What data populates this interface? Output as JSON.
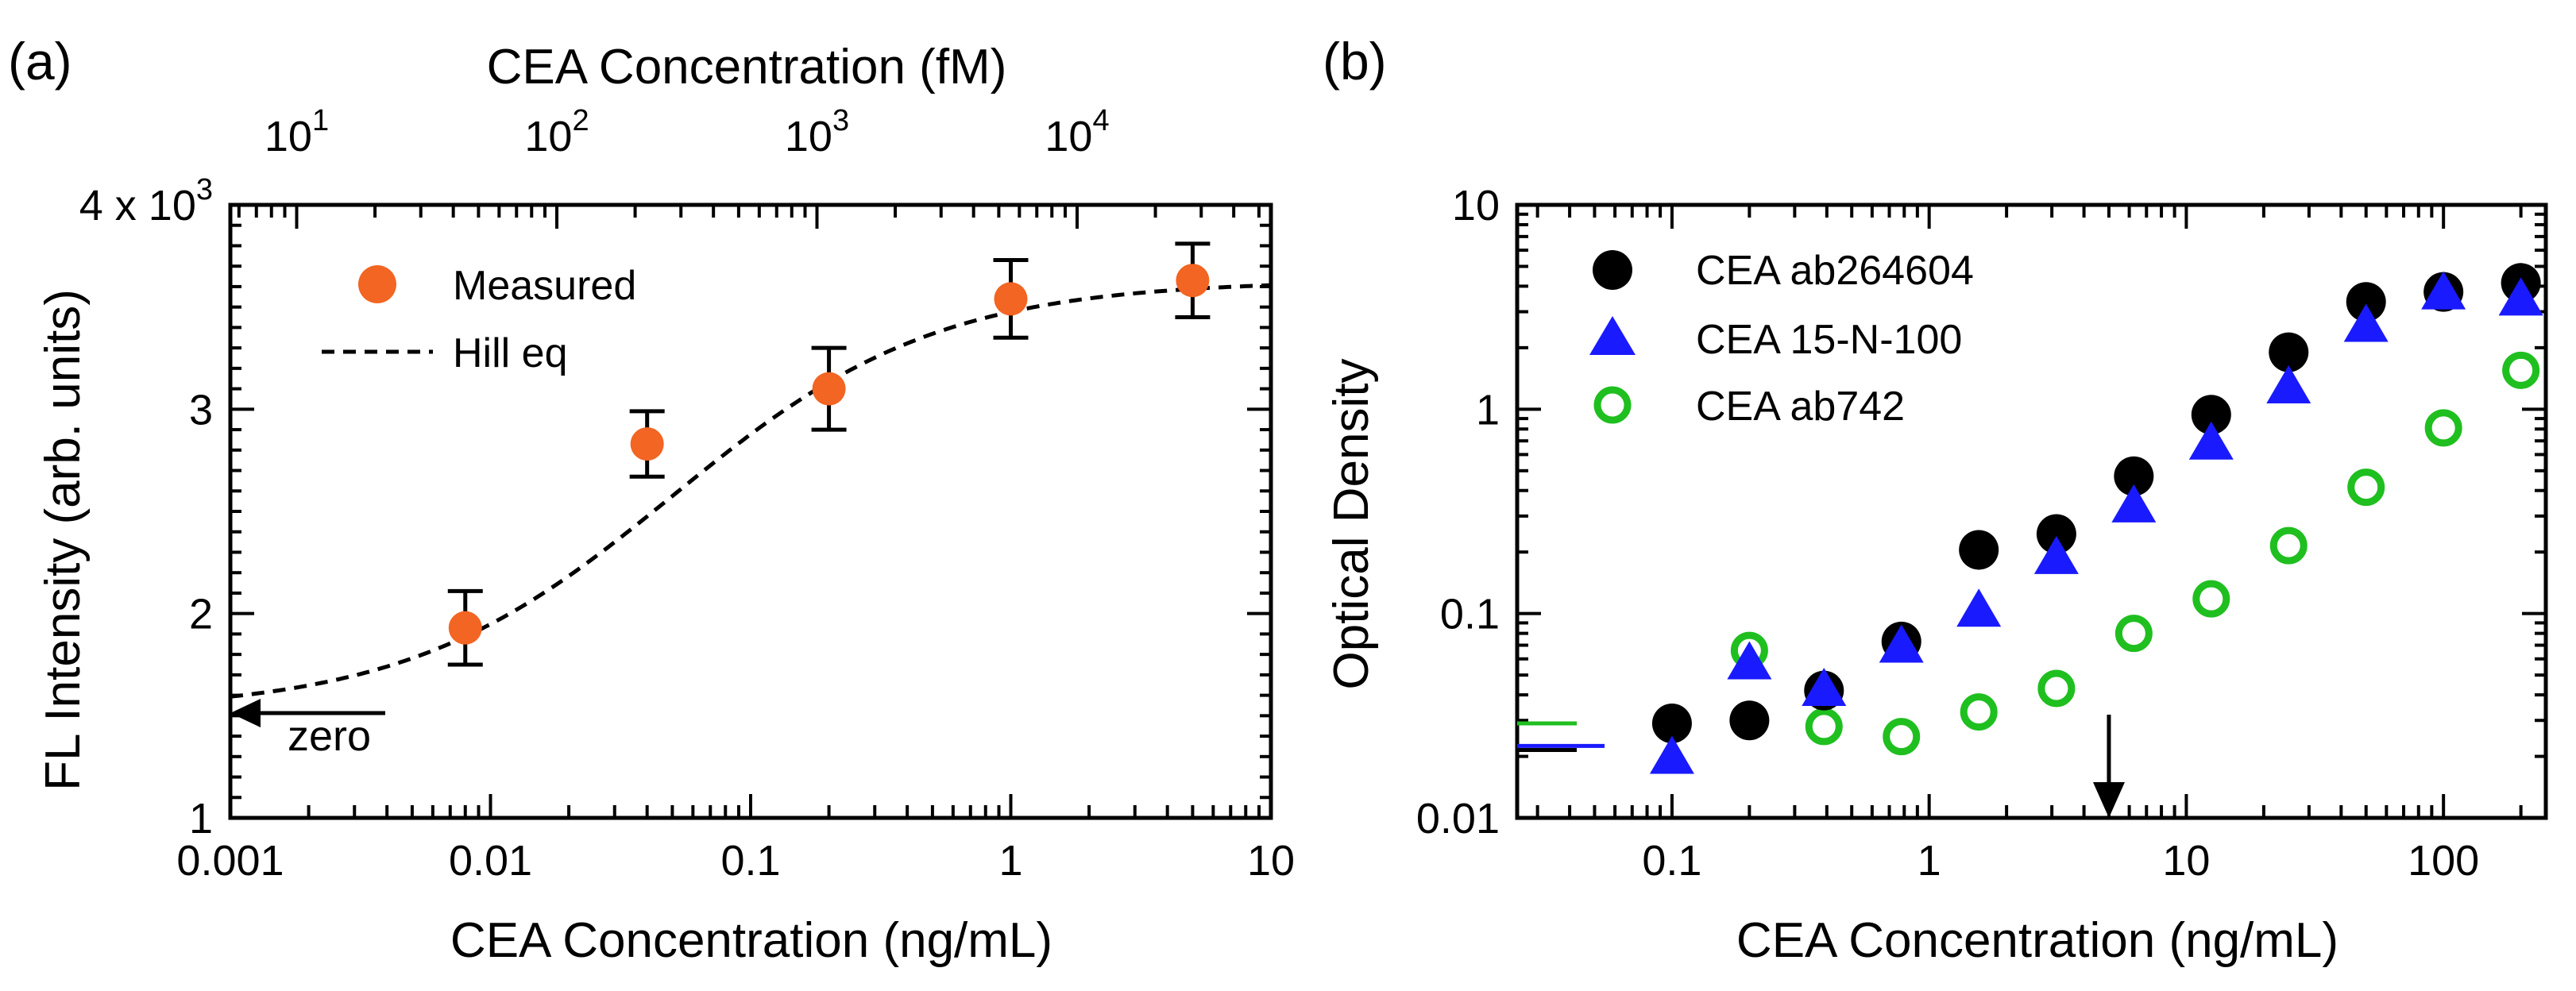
{
  "chart_data": [
    {
      "panel": "(a)",
      "type": "scatter",
      "title": "",
      "xlabel": "CEA Concentration (ng/mL)",
      "ylabel": "FL Intensity (arb. units)",
      "xscale": "log",
      "xlim": [
        0.001,
        10
      ],
      "ylim": [
        1000,
        4000
      ],
      "grid": false,
      "legend_position": "top-left",
      "y_axis_tick_labels": [
        "1",
        "2",
        "3"
      ],
      "y_axis_top_label": {
        "base": "4 x 10",
        "exponent": "3"
      },
      "x_axis_tick_labels": [
        "0.001",
        "0.01",
        "0.1",
        "1",
        "10"
      ],
      "top_axis": {
        "label": "CEA Concentration (fM)",
        "ticks": [
          {
            "base": "10",
            "exponent": "1",
            "fm_value": 10
          },
          {
            "base": "10",
            "exponent": "2",
            "fm_value": 100
          },
          {
            "base": "10",
            "exponent": "3",
            "fm_value": 1000
          },
          {
            "base": "10",
            "exponent": "4",
            "fm_value": 10000
          }
        ]
      },
      "series": [
        {
          "name": "Measured",
          "kind": "markers-with-errorbars",
          "color": "#f26522",
          "x": [
            0.008,
            0.04,
            0.2,
            1,
            5
          ],
          "y": [
            1930,
            2830,
            3100,
            3540,
            3630
          ],
          "yerr": [
            180,
            160,
            200,
            190,
            180
          ]
        },
        {
          "name": "Hill eq",
          "kind": "dashed-curve",
          "color": "#000000",
          "model": {
            "bottom": 1520,
            "top": 3630,
            "ec50": 0.05,
            "hill": 0.85
          }
        }
      ],
      "annotations": [
        {
          "text": "zero",
          "arrow": "left",
          "at_x": 0.001,
          "at_y": 1560
        }
      ]
    },
    {
      "panel": "(b)",
      "type": "scatter",
      "title": "",
      "xlabel": "CEA Concentration (ng/mL)",
      "ylabel": "Optical Density",
      "xscale": "log",
      "yscale": "log",
      "xlim": [
        0.025,
        250
      ],
      "ylim": [
        0.01,
        10
      ],
      "grid": false,
      "legend_position": "top-left",
      "x_axis_tick_labels": [
        "0.1",
        "1",
        "10",
        "100"
      ],
      "y_axis_tick_labels": [
        "0.01",
        "0.1",
        "1",
        "10"
      ],
      "series": [
        {
          "name": "CEA ab264604",
          "marker": "filled-circle",
          "color": "#000000",
          "x": [
            0.1,
            0.2,
            0.39,
            0.78,
            1.56,
            3.125,
            6.25,
            12.5,
            25,
            50,
            100,
            200
          ],
          "y": [
            0.029,
            0.03,
            0.042,
            0.073,
            0.205,
            0.245,
            0.47,
            0.94,
            1.9,
            3.35,
            3.75,
            4.15
          ]
        },
        {
          "name": "CEA 15-N-100",
          "marker": "filled-triangle",
          "color": "#1a1aff",
          "x": [
            0.1,
            0.2,
            0.39,
            0.78,
            1.56,
            3.125,
            6.25,
            12.5,
            25,
            50,
            100,
            200
          ],
          "y": [
            0.02,
            0.058,
            0.043,
            0.07,
            0.105,
            0.19,
            0.34,
            0.69,
            1.3,
            2.6,
            3.75,
            3.5
          ]
        },
        {
          "name": "CEA ab742",
          "marker": "open-circle",
          "color": "#1fbf1f",
          "x": [
            0.1,
            0.2,
            0.39,
            0.78,
            1.56,
            3.125,
            6.25,
            12.5,
            25,
            50,
            100,
            200
          ],
          "y": [
            0.029,
            0.066,
            0.028,
            0.025,
            0.033,
            0.043,
            0.08,
            0.118,
            0.215,
            0.415,
            0.81,
            1.55
          ]
        }
      ],
      "baselines": [
        {
          "color": "#1fbf1f",
          "y": 0.029
        },
        {
          "color": "#000000",
          "y": 0.0215
        },
        {
          "color": "#1a1aff",
          "y": 0.0225
        }
      ],
      "annotations": [
        {
          "text": "",
          "arrow": "down",
          "at_x": 5,
          "at_y": 0.011
        }
      ]
    }
  ]
}
